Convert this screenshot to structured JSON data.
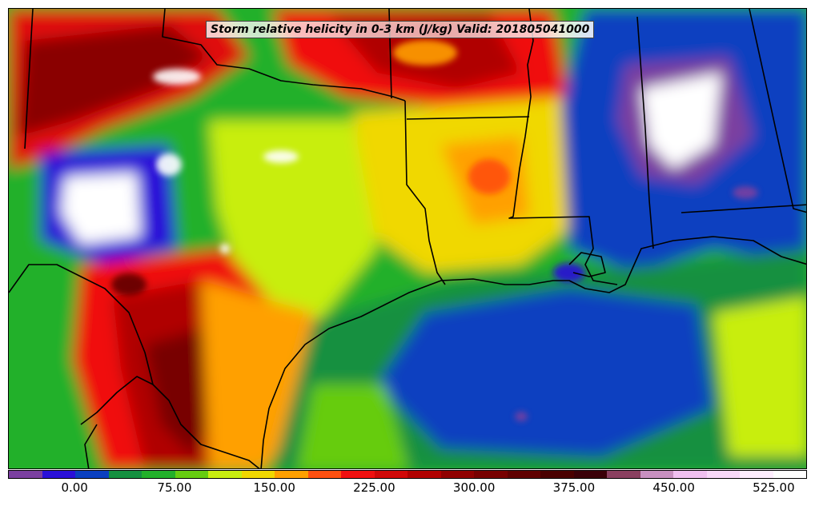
{
  "title": "Storm relative helicity in 0-3 km (J/kg) Valid: 201805041000",
  "colorbar": {
    "colors": [
      "#7b3fa0",
      "#2a10d8",
      "#0a40c0",
      "#149040",
      "#22b02a",
      "#66cc10",
      "#c8ee10",
      "#f0d800",
      "#ffa000",
      "#ff5010",
      "#f01010",
      "#d00808",
      "#b00000",
      "#900000",
      "#780000",
      "#600000",
      "#4a0000",
      "#3a0008",
      "#8a4060",
      "#c890c0",
      "#f0c0f0",
      "#f8d8f8",
      "#ffeeff",
      "#ffffff"
    ],
    "tick_labels": [
      "0.00",
      "75.00",
      "150.00",
      "225.00",
      "300.00",
      "375.00",
      "450.00",
      "525.00"
    ]
  },
  "map_colors": {
    "water_gulf_deep": "#0a40c0",
    "water_gulf": "#149040",
    "land_base": "#22b02a",
    "high": "#d00808",
    "very_high": "#780000",
    "extreme": "#ffffff"
  }
}
